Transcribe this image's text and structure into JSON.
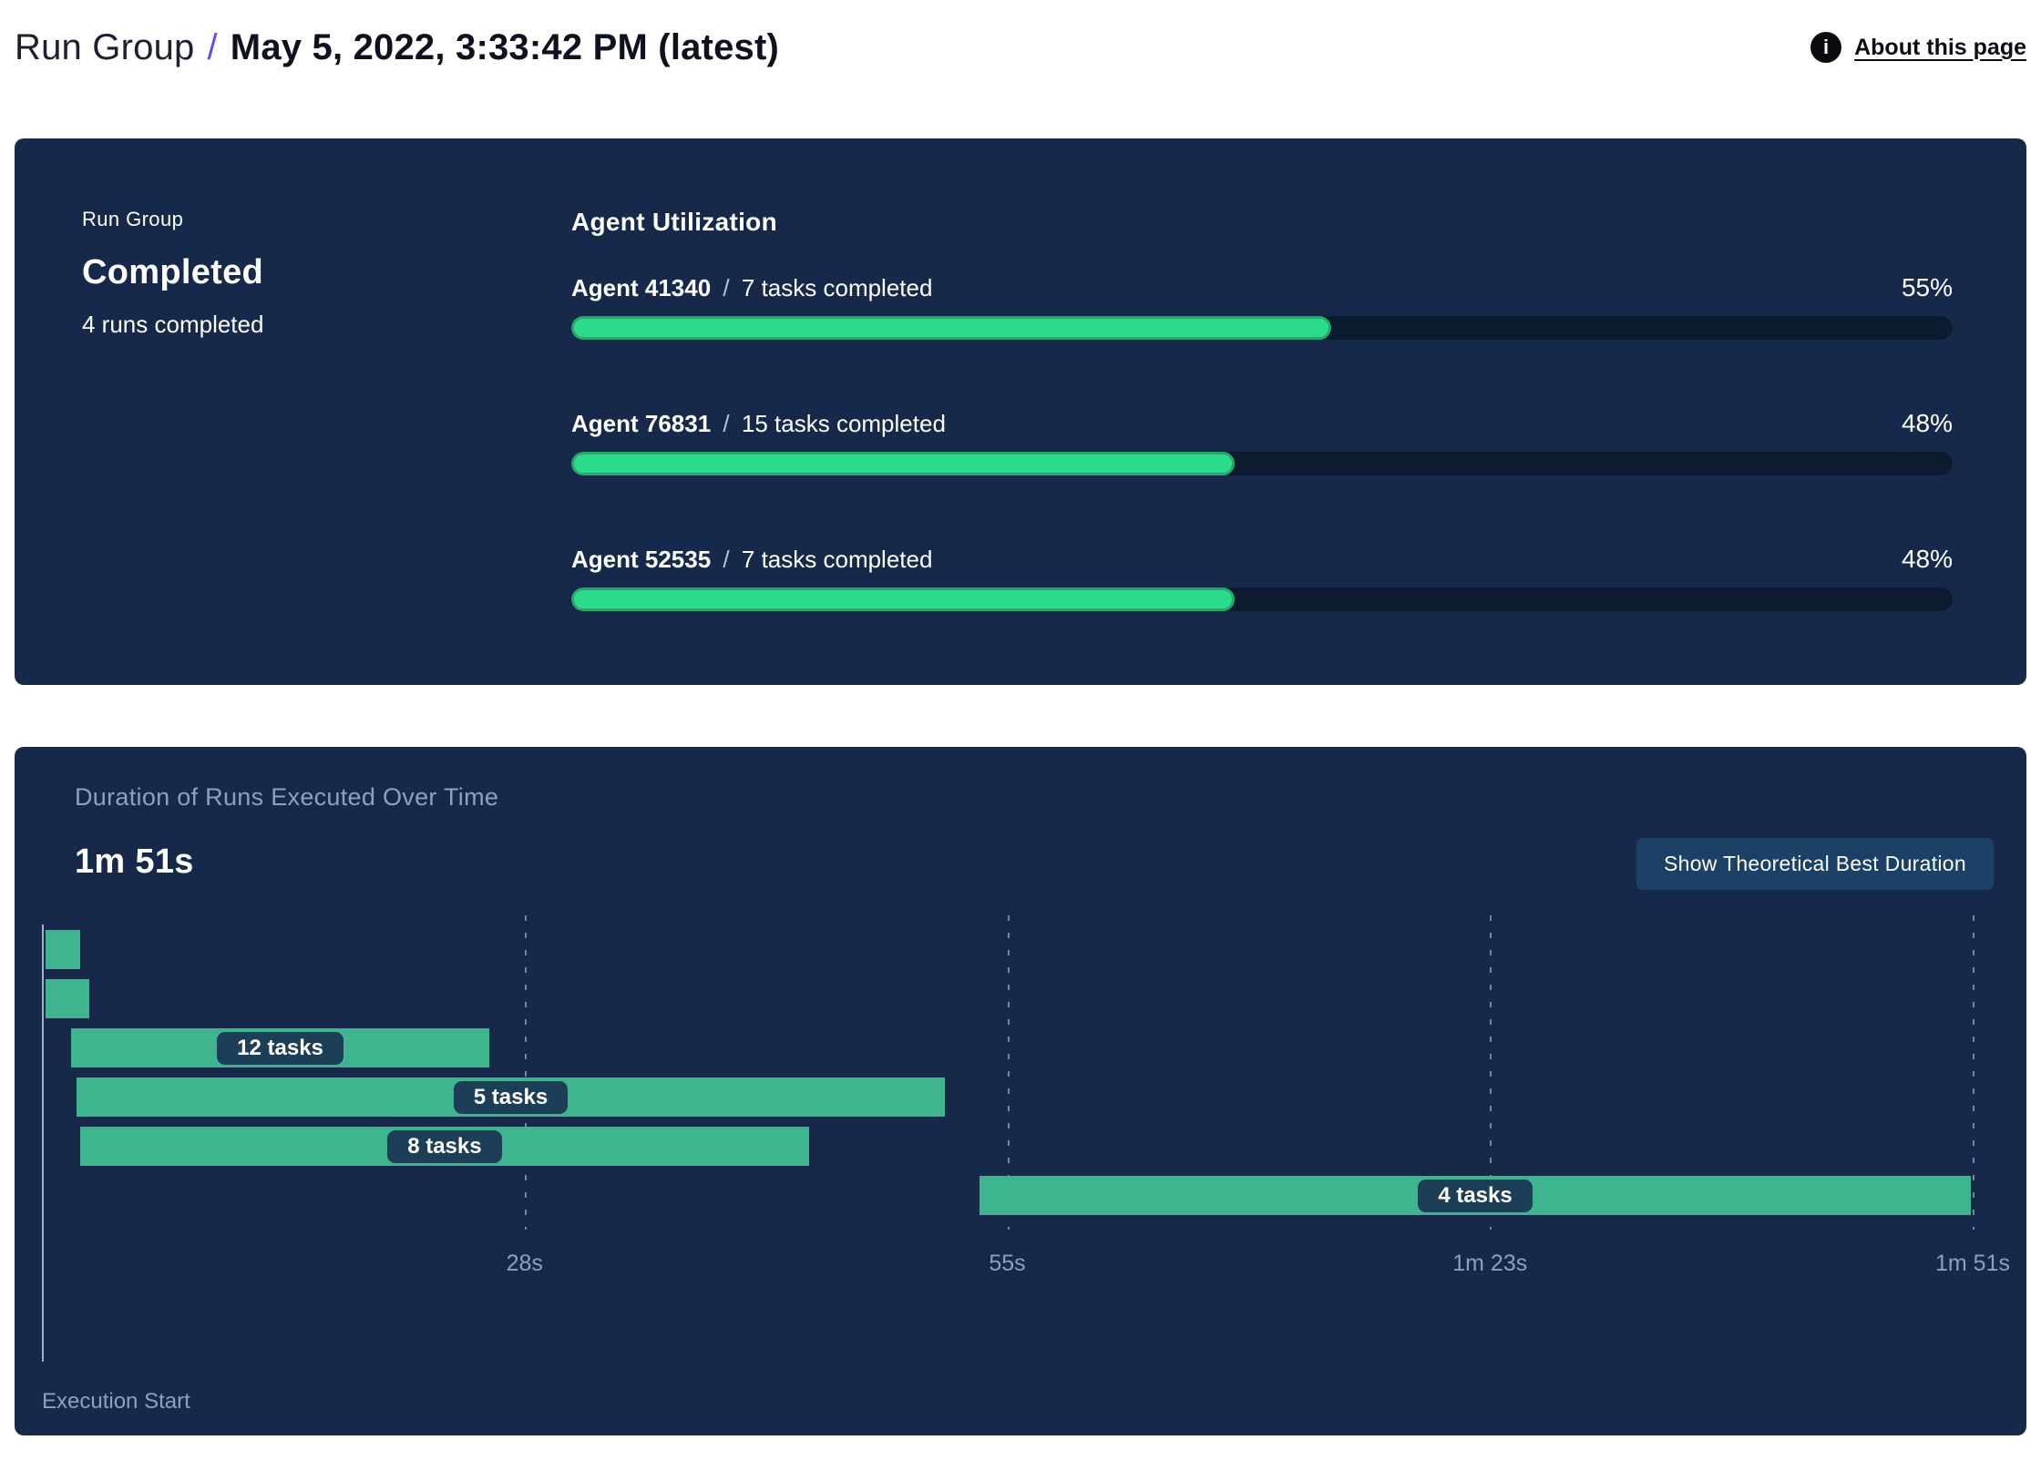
{
  "header": {
    "breadcrumb": "Run Group",
    "separator": "/",
    "title": "May 5, 2022, 3:33:42 PM (latest)",
    "about_label": "About this page",
    "info_glyph": "i"
  },
  "colors": {
    "panel_bg": "#16294a",
    "progress_track": "#0d1b31",
    "progress_fill": "#2cdc8c",
    "progress_fill_edge": "#29a76b",
    "gantt_bar": "#3eb58e",
    "badge_bg": "#1d3e57",
    "button_bg": "#1c4166",
    "muted_text": "#8fa0b8",
    "breadcrumb_slash": "#6c4cf1",
    "info_icon_bg": "#0b0b0f"
  },
  "run_group_panel": {
    "label": "Run Group",
    "status": "Completed",
    "runs_completed": "4 runs completed",
    "utilization": {
      "title": "Agent Utilization",
      "agents": [
        {
          "name": "Agent 41340",
          "separator": "/",
          "tasks": "7 tasks completed",
          "pct": 55,
          "pct_label": "55%"
        },
        {
          "name": "Agent 76831",
          "separator": "/",
          "tasks": "15 tasks completed",
          "pct": 48,
          "pct_label": "48%"
        },
        {
          "name": "Agent 52535",
          "separator": "/",
          "tasks": "7 tasks completed",
          "pct": 48,
          "pct_label": "48%"
        }
      ]
    }
  },
  "duration_panel": {
    "subtitle": "Duration of Runs Executed Over Time",
    "total_label": "1m 51s",
    "button_label": "Show Theoretical Best Duration",
    "execution_start_label": "Execution Start"
  },
  "chart_data": [
    {
      "type": "bar",
      "title": "Agent Utilization",
      "categories": [
        "Agent 41340",
        "Agent 76831",
        "Agent 52535"
      ],
      "values": [
        55,
        48,
        48
      ],
      "value_unit": "%",
      "annotations": [
        "7 tasks completed",
        "15 tasks completed",
        "7 tasks completed"
      ],
      "xlim": [
        0,
        100
      ],
      "orientation": "horizontal"
    },
    {
      "type": "gantt",
      "title": "Duration of Runs Executed Over Time",
      "total_duration_s": 111,
      "total_duration_label": "1m 51s",
      "x_axis": {
        "start_label": "Execution Start",
        "ticks": [
          {
            "t_s": 27.75,
            "label": "28s"
          },
          {
            "t_s": 55.5,
            "label": "55s"
          },
          {
            "t_s": 83.25,
            "label": "1m 23s"
          },
          {
            "t_s": 111,
            "label": "1m 51s"
          }
        ]
      },
      "runs": [
        {
          "start_s": 0.2,
          "end_s": 2.2,
          "label": ""
        },
        {
          "start_s": 0.2,
          "end_s": 2.7,
          "label": ""
        },
        {
          "start_s": 1.7,
          "end_s": 25.7,
          "label": "12 tasks"
        },
        {
          "start_s": 2.0,
          "end_s": 51.9,
          "label": "5 tasks"
        },
        {
          "start_s": 2.2,
          "end_s": 44.1,
          "label": "8 tasks"
        },
        {
          "start_s": 53.9,
          "end_s": 110.9,
          "label": "4 tasks"
        }
      ]
    }
  ]
}
